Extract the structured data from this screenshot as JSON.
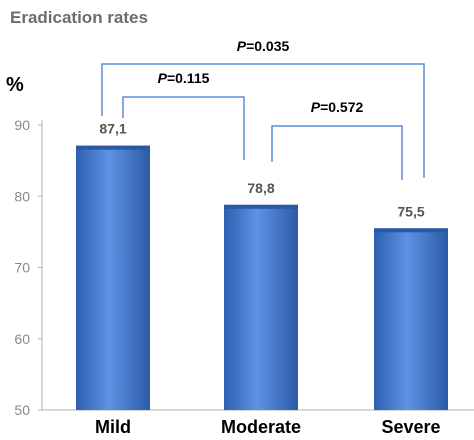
{
  "chart_data": {
    "type": "bar",
    "title": "Eradication rates",
    "ylabel": "%",
    "xlabel": "",
    "categories": [
      "Mild",
      "Moderate",
      "Severe"
    ],
    "values": [
      87.1,
      78.8,
      75.5
    ],
    "value_labels": [
      "87,1",
      "78,8",
      "75,5"
    ],
    "ylim": [
      50,
      90
    ],
    "yticks": [
      50,
      60,
      70,
      80,
      90
    ],
    "grid": false,
    "legend": "none",
    "bar_color": "#4a7fd6",
    "bracket_color": "#5b8fd6",
    "comparisons": [
      {
        "from": "Mild",
        "to": "Moderate",
        "p_label": "P",
        "p_value": "=0.115"
      },
      {
        "from": "Moderate",
        "to": "Severe",
        "p_label": "P",
        "p_value": "=0.572"
      },
      {
        "from": "Mild",
        "to": "Severe",
        "p_label": "P",
        "p_value": "=0.035"
      }
    ]
  }
}
